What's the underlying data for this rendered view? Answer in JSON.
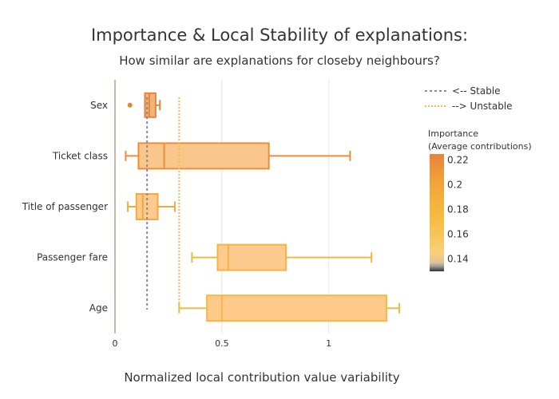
{
  "chart_data": {
    "type": "box",
    "title": "Importance & Local Stability of explanations:",
    "subtitle": "How similar are explanations for closeby neighbours?",
    "xlabel": "Normalized local contribution value variability",
    "xlim": [
      0,
      1.33
    ],
    "xticks": [
      0,
      0.5,
      1
    ],
    "xtick_labels": [
      "0",
      "0.5",
      "1"
    ],
    "grid": true,
    "categories": [
      "Sex",
      "Ticket class",
      "Title of passenger",
      "Passenger fare",
      "Age"
    ],
    "boxes": [
      {
        "name": "Sex",
        "min": 0.14,
        "q1": 0.14,
        "median": 0.16,
        "q3": 0.19,
        "max": 0.21,
        "outliers": [
          0.07
        ],
        "importance": 0.22,
        "color": "#E8833A",
        "fill": "#F2B37A"
      },
      {
        "name": "Ticket class",
        "min": 0.05,
        "q1": 0.11,
        "median": 0.23,
        "q3": 0.72,
        "max": 1.1,
        "outliers": [],
        "importance": 0.212,
        "color": "#EB8E3C",
        "fill": "#F9C68B"
      },
      {
        "name": "Title of passenger",
        "min": 0.06,
        "q1": 0.1,
        "median": 0.13,
        "q3": 0.2,
        "max": 0.28,
        "outliers": [],
        "importance": 0.185,
        "color": "#F2AA3F",
        "fill": "#FCC98E"
      },
      {
        "name": "Passenger fare",
        "min": 0.36,
        "q1": 0.48,
        "median": 0.53,
        "q3": 0.8,
        "max": 1.2,
        "outliers": [],
        "importance": 0.172,
        "color": "#F5B441",
        "fill": "#FDCB8E"
      },
      {
        "name": "Age",
        "min": 0.3,
        "q1": 0.43,
        "median": 0.5,
        "q3": 1.27,
        "max": 1.33,
        "outliers": [],
        "importance": 0.165,
        "color": "#F6B843",
        "fill": "#FDCA8A"
      }
    ],
    "reference_lines": [
      {
        "name": "<-- Stable",
        "x": 0.15,
        "color": "#8c8c8c"
      },
      {
        "name": "--> Unstable",
        "x": 0.3,
        "color": "#F5B85A"
      }
    ],
    "legend_position": "top-right",
    "colorbar": {
      "title_line1": "Importance",
      "title_line2": "(Average contributions)",
      "range": [
        0.13,
        0.225
      ],
      "ticks": [
        0.14,
        0.16,
        0.18,
        0.2,
        0.22
      ],
      "tick_labels": [
        "0.14",
        "0.16",
        "0.18",
        "0.2",
        "0.22"
      ],
      "stops": [
        {
          "value": 0.13,
          "color": "#333333"
        },
        {
          "value": 0.134,
          "color": "#9a9a9a"
        },
        {
          "value": 0.137,
          "color": "#e0c29a"
        },
        {
          "value": 0.145,
          "color": "#F8D07A"
        },
        {
          "value": 0.17,
          "color": "#F5BE44"
        },
        {
          "value": 0.2,
          "color": "#F2A63A"
        },
        {
          "value": 0.225,
          "color": "#E8833A"
        }
      ]
    }
  }
}
